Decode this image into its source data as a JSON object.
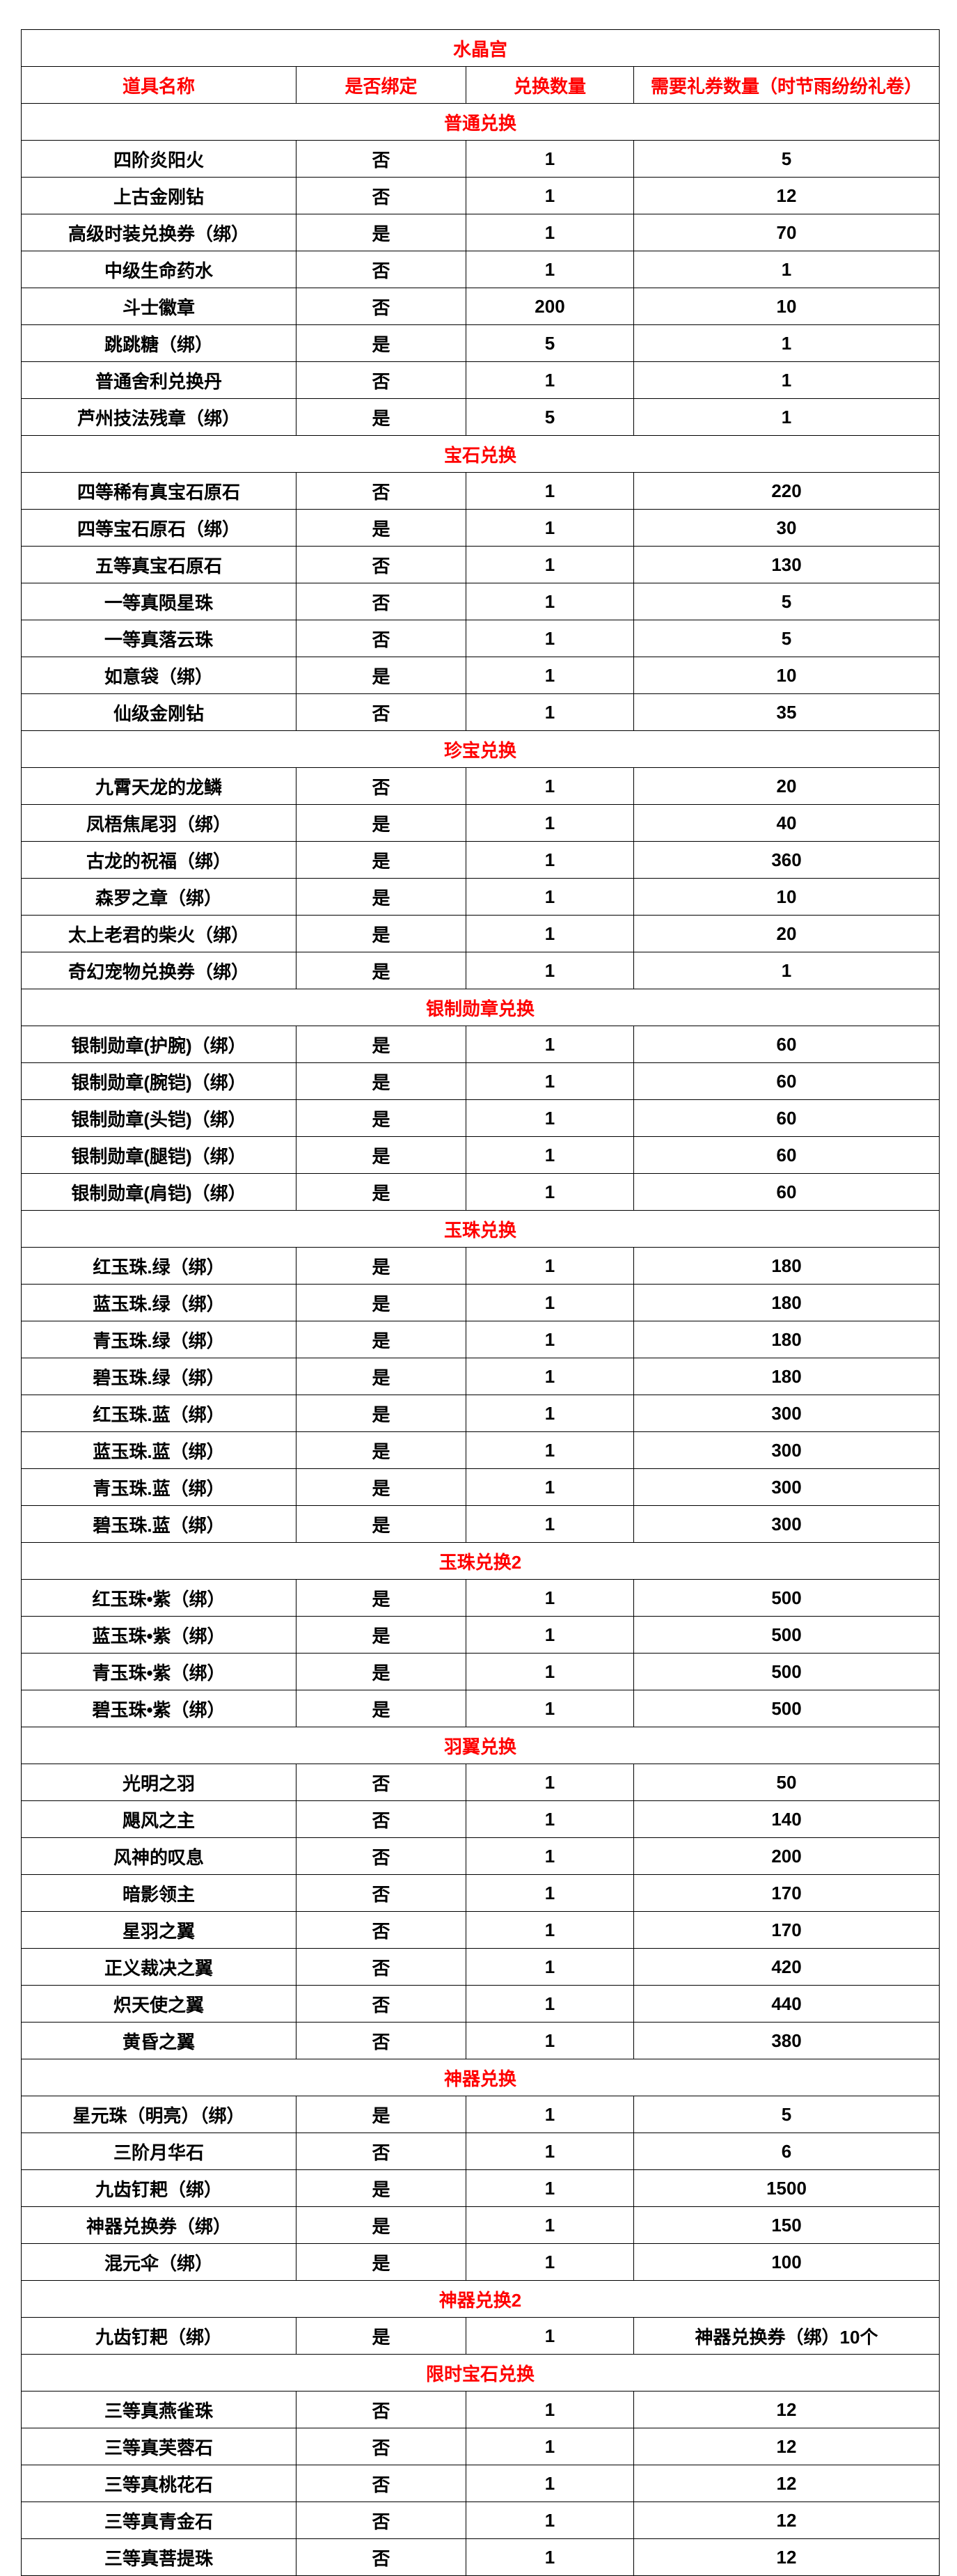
{
  "colors": {
    "accent_red": "#ff0000",
    "body_text": "#000000",
    "border": "#000000",
    "background": "#ffffff"
  },
  "table": {
    "title": "水晶宫",
    "columns": [
      "道具名称",
      "是否绑定",
      "兑换数量",
      "需要礼券数量（时节雨纷纷礼卷）"
    ],
    "sections": [
      {
        "name": "普通兑换",
        "rows": [
          [
            "四阶炎阳火",
            "否",
            "1",
            "5"
          ],
          [
            "上古金刚钻",
            "否",
            "1",
            "12"
          ],
          [
            "高级时装兑换券（绑）",
            "是",
            "1",
            "70"
          ],
          [
            "中级生命药水",
            "否",
            "1",
            "1"
          ],
          [
            "斗士徽章",
            "否",
            "200",
            "10"
          ],
          [
            "跳跳糖（绑）",
            "是",
            "5",
            "1"
          ],
          [
            "普通舍利兑换丹",
            "否",
            "1",
            "1"
          ],
          [
            "芦州技法残章（绑）",
            "是",
            "5",
            "1"
          ]
        ]
      },
      {
        "name": "宝石兑换",
        "rows": [
          [
            "四等稀有真宝石原石",
            "否",
            "1",
            "220"
          ],
          [
            "四等宝石原石（绑）",
            "是",
            "1",
            "30"
          ],
          [
            "五等真宝石原石",
            "否",
            "1",
            "130"
          ],
          [
            "一等真陨星珠",
            "否",
            "1",
            "5"
          ],
          [
            "一等真落云珠",
            "否",
            "1",
            "5"
          ],
          [
            "如意袋（绑）",
            "是",
            "1",
            "10"
          ],
          [
            "仙级金刚钻",
            "否",
            "1",
            "35"
          ]
        ]
      },
      {
        "name": "珍宝兑换",
        "rows": [
          [
            "九霄天龙的龙鳞",
            "否",
            "1",
            "20"
          ],
          [
            "凤梧焦尾羽（绑）",
            "是",
            "1",
            "40"
          ],
          [
            "古龙的祝福（绑）",
            "是",
            "1",
            "360"
          ],
          [
            "森罗之章（绑）",
            "是",
            "1",
            "10"
          ],
          [
            "太上老君的柴火（绑）",
            "是",
            "1",
            "20"
          ],
          [
            "奇幻宠物兑换券（绑）",
            "是",
            "1",
            "1"
          ]
        ]
      },
      {
        "name": "银制勋章兑换",
        "rows": [
          [
            "银制勋章(护腕)（绑）",
            "是",
            "1",
            "60"
          ],
          [
            "银制勋章(腕铠)（绑）",
            "是",
            "1",
            "60"
          ],
          [
            "银制勋章(头铠)（绑）",
            "是",
            "1",
            "60"
          ],
          [
            "银制勋章(腿铠)（绑）",
            "是",
            "1",
            "60"
          ],
          [
            "银制勋章(肩铠)（绑）",
            "是",
            "1",
            "60"
          ]
        ]
      },
      {
        "name": "玉珠兑换",
        "rows": [
          [
            "红玉珠.绿（绑）",
            "是",
            "1",
            "180"
          ],
          [
            "蓝玉珠.绿（绑）",
            "是",
            "1",
            "180"
          ],
          [
            "青玉珠.绿（绑）",
            "是",
            "1",
            "180"
          ],
          [
            "碧玉珠.绿（绑）",
            "是",
            "1",
            "180"
          ],
          [
            "红玉珠.蓝（绑）",
            "是",
            "1",
            "300"
          ],
          [
            "蓝玉珠.蓝（绑）",
            "是",
            "1",
            "300"
          ],
          [
            "青玉珠.蓝（绑）",
            "是",
            "1",
            "300"
          ],
          [
            "碧玉珠.蓝（绑）",
            "是",
            "1",
            "300"
          ]
        ]
      },
      {
        "name": "玉珠兑换2",
        "rows": [
          [
            "红玉珠•紫（绑）",
            "是",
            "1",
            "500"
          ],
          [
            "蓝玉珠•紫（绑）",
            "是",
            "1",
            "500"
          ],
          [
            "青玉珠•紫（绑）",
            "是",
            "1",
            "500"
          ],
          [
            "碧玉珠•紫（绑）",
            "是",
            "1",
            "500"
          ]
        ]
      },
      {
        "name": "羽翼兑换",
        "rows": [
          [
            "光明之羽",
            "否",
            "1",
            "50"
          ],
          [
            "飓风之主",
            "否",
            "1",
            "140"
          ],
          [
            "风神的叹息",
            "否",
            "1",
            "200"
          ],
          [
            "暗影领主",
            "否",
            "1",
            "170"
          ],
          [
            "星羽之翼",
            "否",
            "1",
            "170"
          ],
          [
            "正义裁决之翼",
            "否",
            "1",
            "420"
          ],
          [
            "炽天使之翼",
            "否",
            "1",
            "440"
          ],
          [
            "黄昏之翼",
            "否",
            "1",
            "380"
          ]
        ]
      },
      {
        "name": "神器兑换",
        "rows": [
          [
            "星元珠（明亮）（绑）",
            "是",
            "1",
            "5"
          ],
          [
            "三阶月华石",
            "否",
            "1",
            "6"
          ],
          [
            "九齿钉耙（绑）",
            "是",
            "1",
            "1500"
          ],
          [
            "神器兑换券（绑）",
            "是",
            "1",
            "150"
          ],
          [
            "混元伞（绑）",
            "是",
            "1",
            "100"
          ]
        ]
      },
      {
        "name": "神器兑换2",
        "rows": [
          [
            "九齿钉耙（绑）",
            "是",
            "1",
            "神器兑换券（绑）10个"
          ]
        ]
      },
      {
        "name": "限时宝石兑换",
        "rows": [
          [
            "三等真燕雀珠",
            "否",
            "1",
            "12"
          ],
          [
            "三等真芙蓉石",
            "否",
            "1",
            "12"
          ],
          [
            "三等真桃花石",
            "否",
            "1",
            "12"
          ],
          [
            "三等真青金石",
            "否",
            "1",
            "12"
          ],
          [
            "三等真菩提珠",
            "否",
            "1",
            "12"
          ]
        ]
      }
    ]
  }
}
